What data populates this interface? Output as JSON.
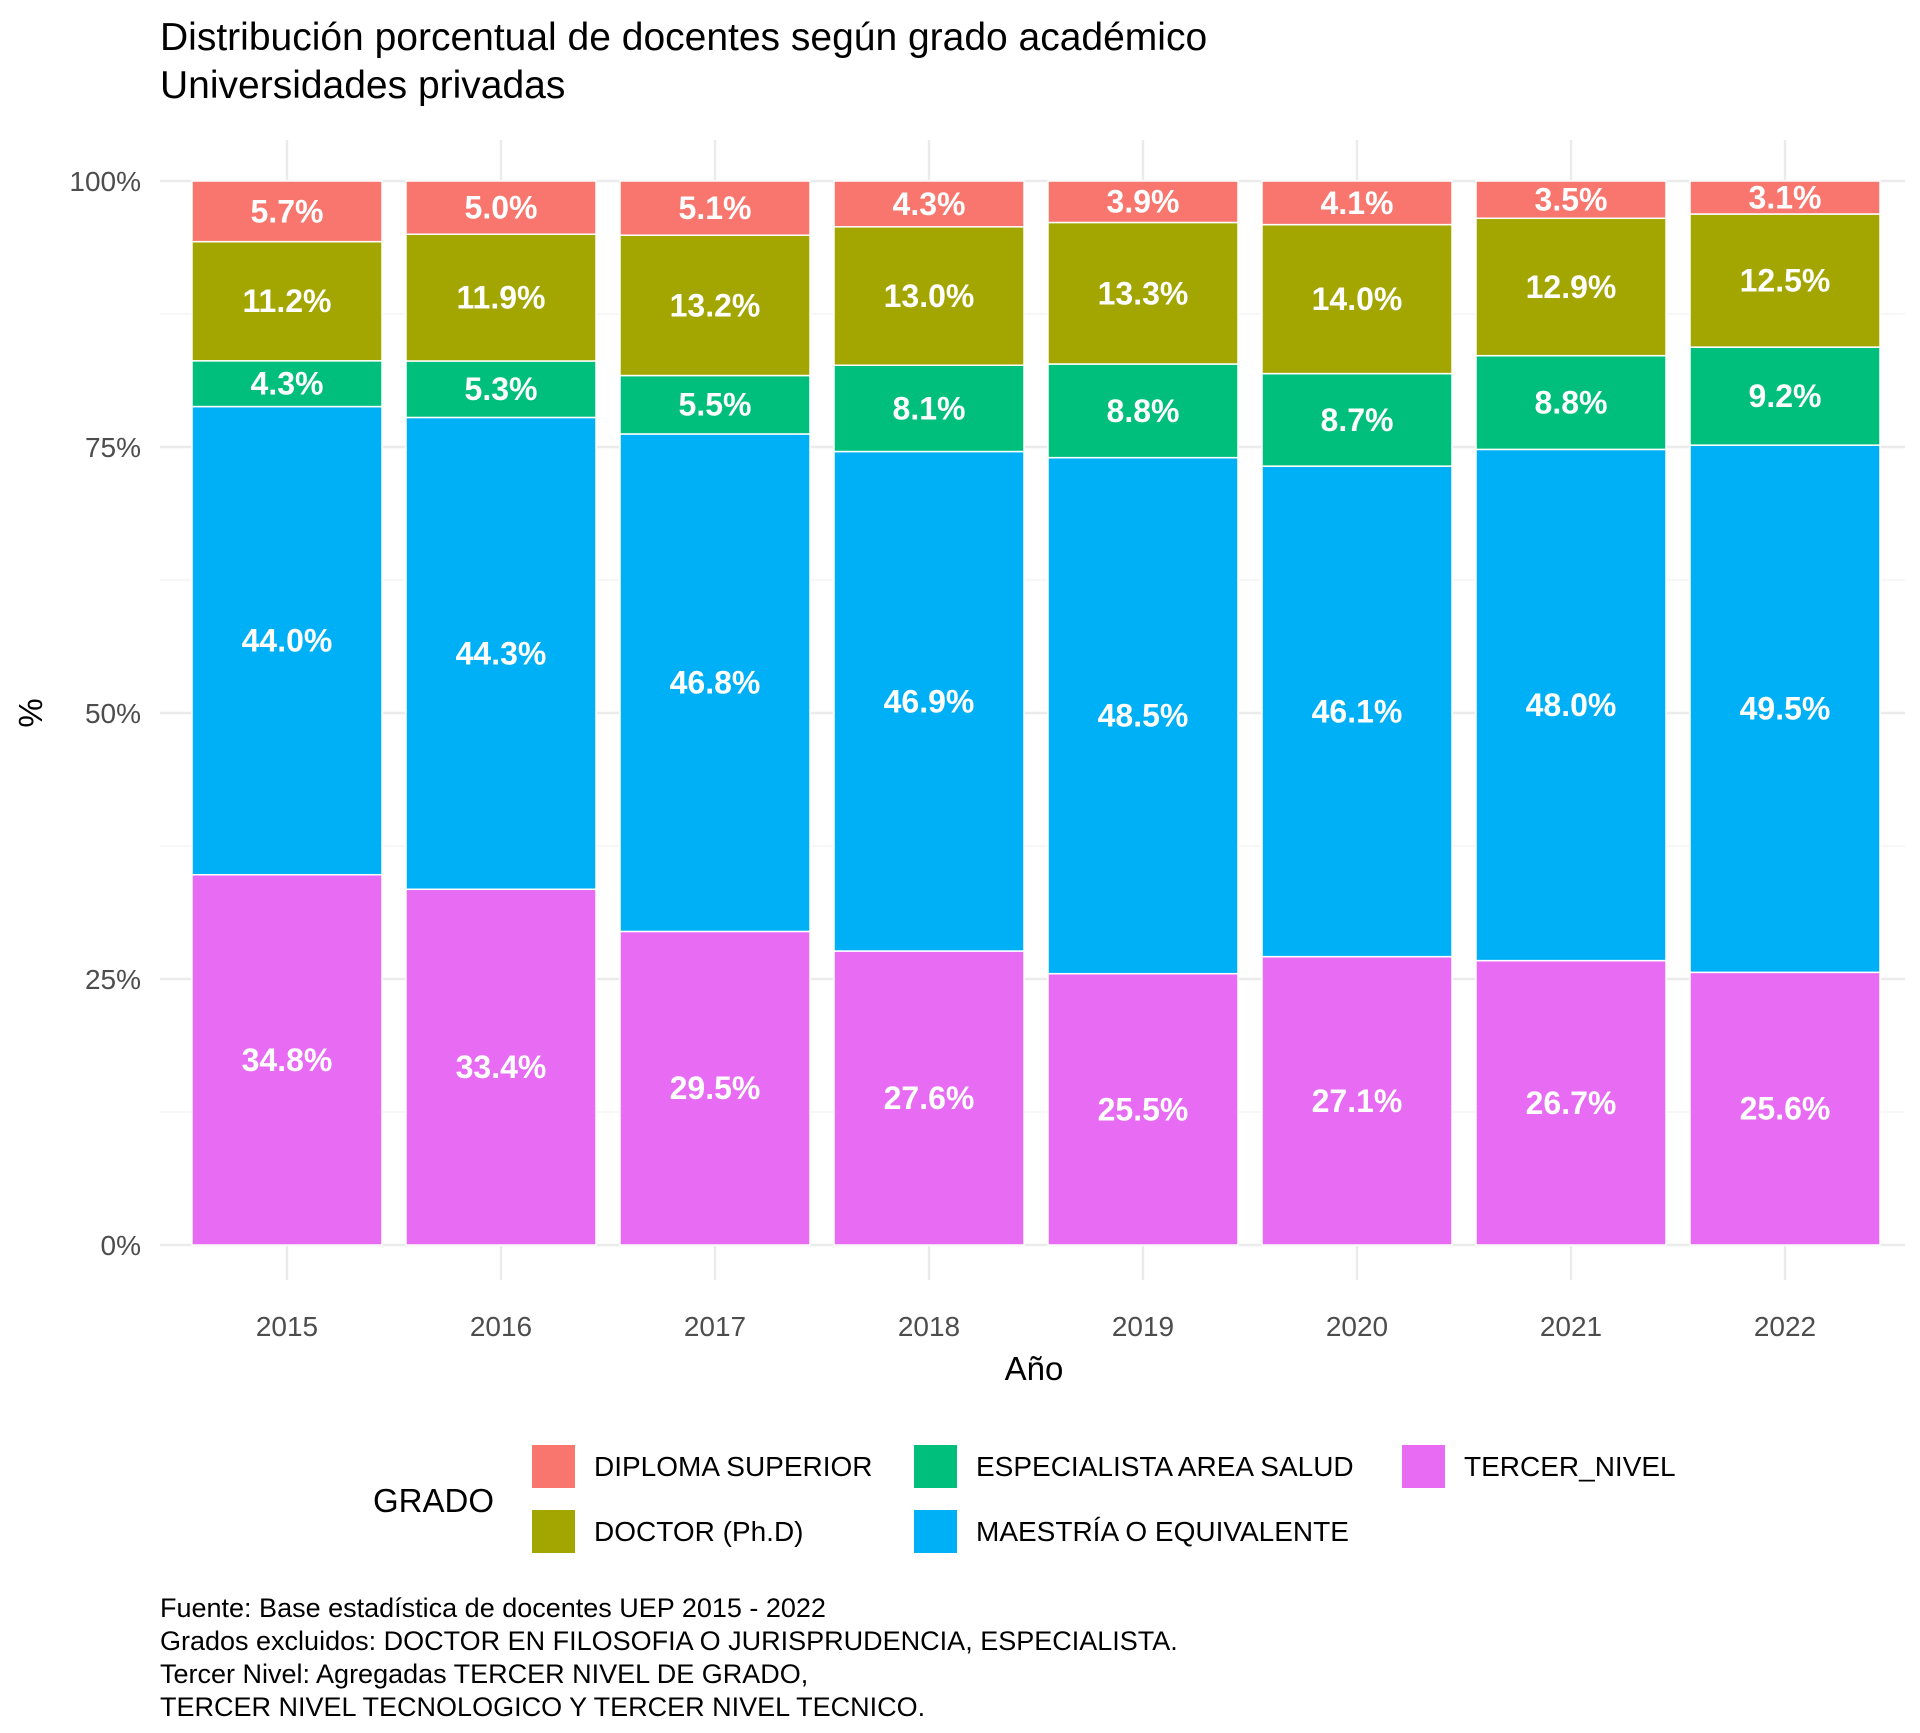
{
  "chart_data": {
    "type": "bar",
    "stacked": true,
    "title": "Distribución porcentual de docentes según grado académico",
    "subtitle": "Universidades privadas",
    "xlabel": "Año",
    "ylabel": "%",
    "categories": [
      "2015",
      "2016",
      "2017",
      "2018",
      "2019",
      "2020",
      "2021",
      "2022"
    ],
    "ylim": [
      0,
      100
    ],
    "y_ticks": [
      "0%",
      "25%",
      "50%",
      "75%",
      "100%"
    ],
    "grid": true,
    "legend": {
      "title": "GRADO",
      "position": "bottom",
      "items": [
        {
          "label": "DIPLOMA SUPERIOR",
          "color": "#F8766D"
        },
        {
          "label": "DOCTOR (Ph.D)",
          "color": "#A3A500"
        },
        {
          "label": "ESPECIALISTA AREA SALUD",
          "color": "#00BF7D"
        },
        {
          "label": "MAESTRÍA O EQUIVALENTE",
          "color": "#00B0F6"
        },
        {
          "label": "TERCER_NIVEL",
          "color": "#E76BF3"
        }
      ]
    },
    "series": [
      {
        "name": "TERCER_NIVEL",
        "color": "#E76BF3",
        "values": [
          34.8,
          33.4,
          29.5,
          27.6,
          25.5,
          27.1,
          26.7,
          25.6
        ],
        "labels": [
          "34.8%",
          "33.4%",
          "29.5%",
          "27.6%",
          "25.5%",
          "27.1%",
          "26.7%",
          "25.6%"
        ]
      },
      {
        "name": "MAESTRÍA O EQUIVALENTE",
        "color": "#00B0F6",
        "values": [
          44.0,
          44.3,
          46.8,
          46.9,
          48.5,
          46.1,
          48.0,
          49.5
        ],
        "labels": [
          "44.0%",
          "44.3%",
          "46.8%",
          "46.9%",
          "48.5%",
          "46.1%",
          "48.0%",
          "49.5%"
        ]
      },
      {
        "name": "ESPECIALISTA AREA SALUD",
        "color": "#00BF7D",
        "values": [
          4.3,
          5.3,
          5.5,
          8.1,
          8.8,
          8.7,
          8.8,
          9.2
        ],
        "labels": [
          "4.3%",
          "5.3%",
          "5.5%",
          "8.1%",
          "8.8%",
          "8.7%",
          "8.8%",
          "9.2%"
        ]
      },
      {
        "name": "DOCTOR (Ph.D)",
        "color": "#A3A500",
        "values": [
          11.2,
          11.9,
          13.2,
          13.0,
          13.3,
          14.0,
          12.9,
          12.5
        ],
        "labels": [
          "11.2%",
          "11.9%",
          "13.2%",
          "13.0%",
          "13.3%",
          "14.0%",
          "12.9%",
          "12.5%"
        ]
      },
      {
        "name": "DIPLOMA SUPERIOR",
        "color": "#F8766D",
        "values": [
          5.7,
          5.0,
          5.1,
          4.3,
          3.9,
          4.1,
          3.5,
          3.1
        ],
        "labels": [
          "5.7%",
          "5.0%",
          "5.1%",
          "4.3%",
          "3.9%",
          "4.1%",
          "3.5%",
          "3.1%"
        ]
      }
    ],
    "caption": [
      "Fuente: Base estadística de docentes UEP 2015 - 2022",
      "Grados excluidos: DOCTOR EN FILOSOFIA O JURISPRUDENCIA, ESPECIALISTA.",
      "Tercer Nivel: Agregadas TERCER NIVEL DE GRADO,",
      "TERCER NIVEL TECNOLOGICO Y TERCER NIVEL TECNICO."
    ]
  }
}
